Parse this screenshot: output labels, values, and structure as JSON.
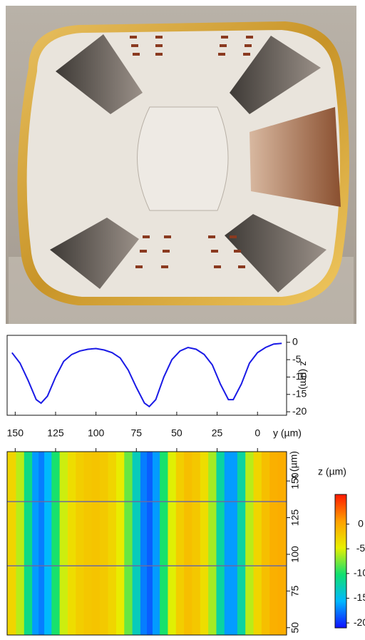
{
  "chart_data": [
    {
      "type": "line",
      "ylabel": "z (µm)",
      "x": [
        152,
        147,
        142,
        137,
        134,
        130,
        125,
        120,
        115,
        110,
        105,
        100,
        95,
        90,
        85,
        80,
        75,
        70,
        67,
        63,
        58,
        53,
        48,
        43,
        38,
        33,
        28,
        23,
        18,
        15,
        10,
        5,
        0,
        -5,
        -10,
        -15
      ],
      "series": [
        {
          "color": "#1a1ae6",
          "values": [
            -3,
            -6,
            -11,
            -16.5,
            -17.5,
            -15.5,
            -10,
            -5.5,
            -3.5,
            -2.5,
            -2,
            -1.8,
            -2.2,
            -3,
            -4.5,
            -8,
            -13,
            -17.5,
            -18.5,
            -16.5,
            -10,
            -5,
            -2.5,
            -1.5,
            -2,
            -3.5,
            -6.5,
            -12,
            -16.5,
            -16.5,
            -12,
            -6,
            -3,
            -1.5,
            -0.5,
            -0.3
          ]
        }
      ],
      "xlim": [
        155,
        -18
      ],
      "ylim": [
        -21,
        2
      ],
      "yticks": [
        0,
        -5,
        -10,
        -15,
        -20
      ]
    },
    {
      "type": "heatmap",
      "xlabel": "y (µm)",
      "ylabel": "x (µm)",
      "xlim": [
        155,
        -18
      ],
      "xticks": [
        150,
        125,
        100,
        75,
        50,
        25,
        0
      ],
      "ylim": [
        45,
        170
      ],
      "yticks": [
        150,
        125,
        100,
        75,
        50
      ],
      "colorbar": {
        "label": "z (µm)",
        "lim": [
          -21,
          6
        ],
        "ticks": [
          0,
          -5,
          -10,
          -15,
          -20
        ],
        "colormap": [
          "#1010ff",
          "#00b8ff",
          "#10e070",
          "#e8f000",
          "#ffa000",
          "#ff1800"
        ]
      }
    }
  ]
}
